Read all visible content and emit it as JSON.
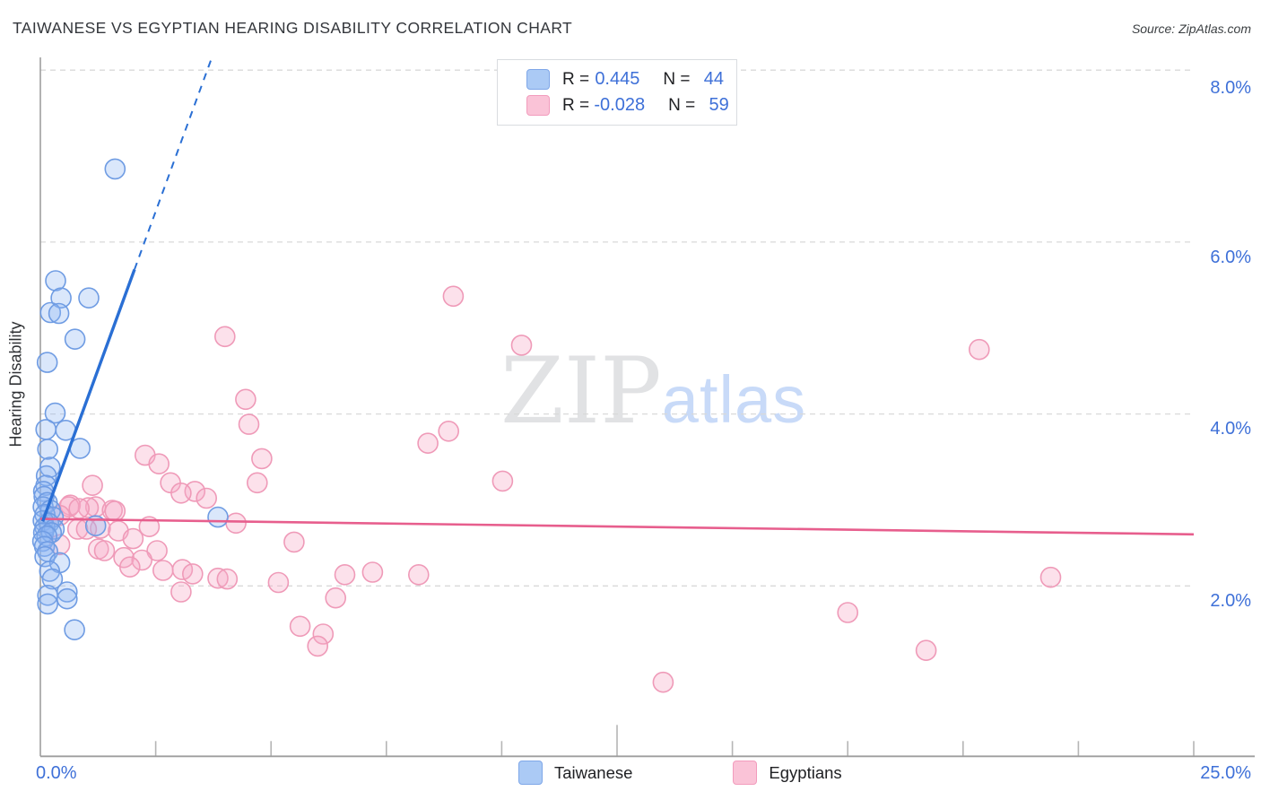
{
  "header": {
    "title": "TAIWANESE VS EGYPTIAN HEARING DISABILITY CORRELATION CHART",
    "source": "Source: ZipAtlas.com"
  },
  "watermark": {
    "zip": "ZIP",
    "atlas": "atlas"
  },
  "legend_box": {
    "rows": [
      {
        "series": "Taiwanese",
        "r_label": "R = ",
        "r_value": "0.445",
        "n_label": "N = ",
        "n_value": "44"
      },
      {
        "series": "Egyptians",
        "r_label": "R = ",
        "r_value": "-0.028",
        "n_label": "N = ",
        "n_value": "59"
      }
    ]
  },
  "bottom_legend": [
    {
      "label": "Taiwanese"
    },
    {
      "label": "Egyptians"
    }
  ],
  "axes": {
    "y_title": "Hearing Disability",
    "x_min_label": "0.0%",
    "x_max_label": "25.0%",
    "y_tick_labels": [
      "8.0%",
      "6.0%",
      "4.0%",
      "2.0%"
    ]
  },
  "colors": {
    "blue_accent": "#3e70d8",
    "blue_point_stroke": "#6f9ce3",
    "blue_point_fill": "rgba(140,181,242,0.32)",
    "pink_point_stroke": "#ef9ab8",
    "pink_point_fill": "rgba(247,170,197,0.35)",
    "blue_trend": "#2a6fd4",
    "pink_trend": "#e75e8d",
    "gridline": "#d9d9d9",
    "axis": "#9e9e9e"
  },
  "chart_data": {
    "type": "scatter",
    "title": "TAIWANESE VS EGYPTIAN HEARING DISABILITY CORRELATION CHART",
    "xlabel": "",
    "ylabel": "Hearing Disability",
    "xlim": [
      0,
      25
    ],
    "ylim": [
      0,
      8.35
    ],
    "x_unit": "percent",
    "y_unit": "percent",
    "grid": "horizontal dashed gridlines at 2,4,6,8",
    "y_gridlines": [
      2,
      4,
      6,
      8
    ],
    "x_ticks": [
      2.5,
      5,
      7.5,
      10,
      12.5,
      15,
      17.5,
      20,
      22.5,
      25
    ],
    "legend_position": "top-center (R/N box) and bottom-center (series names)",
    "series": [
      {
        "name": "Taiwanese",
        "R": 0.445,
        "N": 44,
        "points": [
          [
            1.62,
            6.85
          ],
          [
            0.33,
            5.55
          ],
          [
            0.45,
            5.35
          ],
          [
            1.05,
            5.35
          ],
          [
            0.22,
            5.18
          ],
          [
            0.4,
            5.17
          ],
          [
            0.75,
            4.87
          ],
          [
            0.15,
            4.6
          ],
          [
            0.32,
            4.01
          ],
          [
            0.12,
            3.82
          ],
          [
            0.55,
            3.81
          ],
          [
            0.86,
            3.6
          ],
          [
            0.16,
            3.59
          ],
          [
            0.21,
            3.38
          ],
          [
            0.13,
            3.28
          ],
          [
            0.12,
            3.17
          ],
          [
            0.07,
            3.1
          ],
          [
            0.08,
            3.04
          ],
          [
            0.15,
            2.97
          ],
          [
            0.06,
            2.92
          ],
          [
            0.22,
            2.88
          ],
          [
            0.1,
            2.83
          ],
          [
            0.28,
            2.8
          ],
          [
            0.06,
            2.76
          ],
          [
            0.18,
            2.73
          ],
          [
            0.1,
            2.68
          ],
          [
            0.3,
            2.66
          ],
          [
            0.07,
            2.62
          ],
          [
            0.24,
            2.62
          ],
          [
            0.14,
            2.58
          ],
          [
            0.05,
            2.52
          ],
          [
            0.09,
            2.46
          ],
          [
            1.2,
            2.7
          ],
          [
            3.85,
            2.8
          ],
          [
            0.16,
            2.4
          ],
          [
            0.1,
            2.34
          ],
          [
            0.42,
            2.27
          ],
          [
            0.2,
            2.17
          ],
          [
            0.26,
            2.08
          ],
          [
            0.58,
            1.93
          ],
          [
            0.16,
            1.89
          ],
          [
            0.58,
            1.85
          ],
          [
            0.16,
            1.79
          ],
          [
            0.74,
            1.49
          ]
        ]
      },
      {
        "name": "Egyptians",
        "R": -0.028,
        "N": 59,
        "points": [
          [
            8.95,
            5.37
          ],
          [
            4.0,
            4.9
          ],
          [
            10.43,
            4.8
          ],
          [
            20.35,
            4.75
          ],
          [
            4.45,
            4.17
          ],
          [
            4.52,
            3.88
          ],
          [
            8.85,
            3.8
          ],
          [
            8.4,
            3.66
          ],
          [
            2.27,
            3.52
          ],
          [
            4.8,
            3.48
          ],
          [
            2.57,
            3.42
          ],
          [
            3.35,
            3.1
          ],
          [
            10.02,
            3.22
          ],
          [
            4.7,
            3.2
          ],
          [
            2.82,
            3.2
          ],
          [
            3.05,
            3.08
          ],
          [
            1.13,
            3.17
          ],
          [
            3.6,
            3.02
          ],
          [
            0.65,
            2.94
          ],
          [
            0.62,
            2.92
          ],
          [
            1.2,
            2.92
          ],
          [
            1.04,
            2.91
          ],
          [
            0.84,
            2.9
          ],
          [
            1.56,
            2.88
          ],
          [
            1.62,
            2.87
          ],
          [
            0.42,
            2.82
          ],
          [
            4.24,
            2.73
          ],
          [
            1.3,
            2.67
          ],
          [
            0.81,
            2.66
          ],
          [
            1.0,
            2.66
          ],
          [
            1.69,
            2.64
          ],
          [
            2.36,
            2.69
          ],
          [
            2.01,
            2.55
          ],
          [
            5.5,
            2.51
          ],
          [
            0.42,
            2.48
          ],
          [
            1.26,
            2.43
          ],
          [
            1.39,
            2.41
          ],
          [
            2.53,
            2.41
          ],
          [
            1.81,
            2.33
          ],
          [
            2.2,
            2.3
          ],
          [
            1.94,
            2.22
          ],
          [
            3.08,
            2.19
          ],
          [
            2.66,
            2.18
          ],
          [
            3.3,
            2.14
          ],
          [
            6.6,
            2.13
          ],
          [
            8.2,
            2.13
          ],
          [
            21.9,
            2.1
          ],
          [
            3.85,
            2.09
          ],
          [
            4.05,
            2.08
          ],
          [
            5.16,
            2.04
          ],
          [
            7.2,
            2.16
          ],
          [
            3.05,
            1.93
          ],
          [
            6.4,
            1.86
          ],
          [
            17.5,
            1.69
          ],
          [
            5.63,
            1.53
          ],
          [
            6.13,
            1.44
          ],
          [
            6.01,
            1.3
          ],
          [
            19.2,
            1.25
          ],
          [
            13.5,
            0.88
          ]
        ]
      }
    ],
    "trend_lines": [
      {
        "series": "Taiwanese",
        "style": "solid then dashed extrapolation",
        "solid": [
          [
            0.05,
            2.75
          ],
          [
            2.04,
            5.68
          ]
        ],
        "dashed": [
          [
            2.04,
            5.68
          ],
          [
            3.72,
            8.15
          ]
        ]
      },
      {
        "series": "Egyptians",
        "style": "solid",
        "solid": [
          [
            0.0,
            2.78
          ],
          [
            25.0,
            2.6
          ]
        ]
      }
    ]
  }
}
